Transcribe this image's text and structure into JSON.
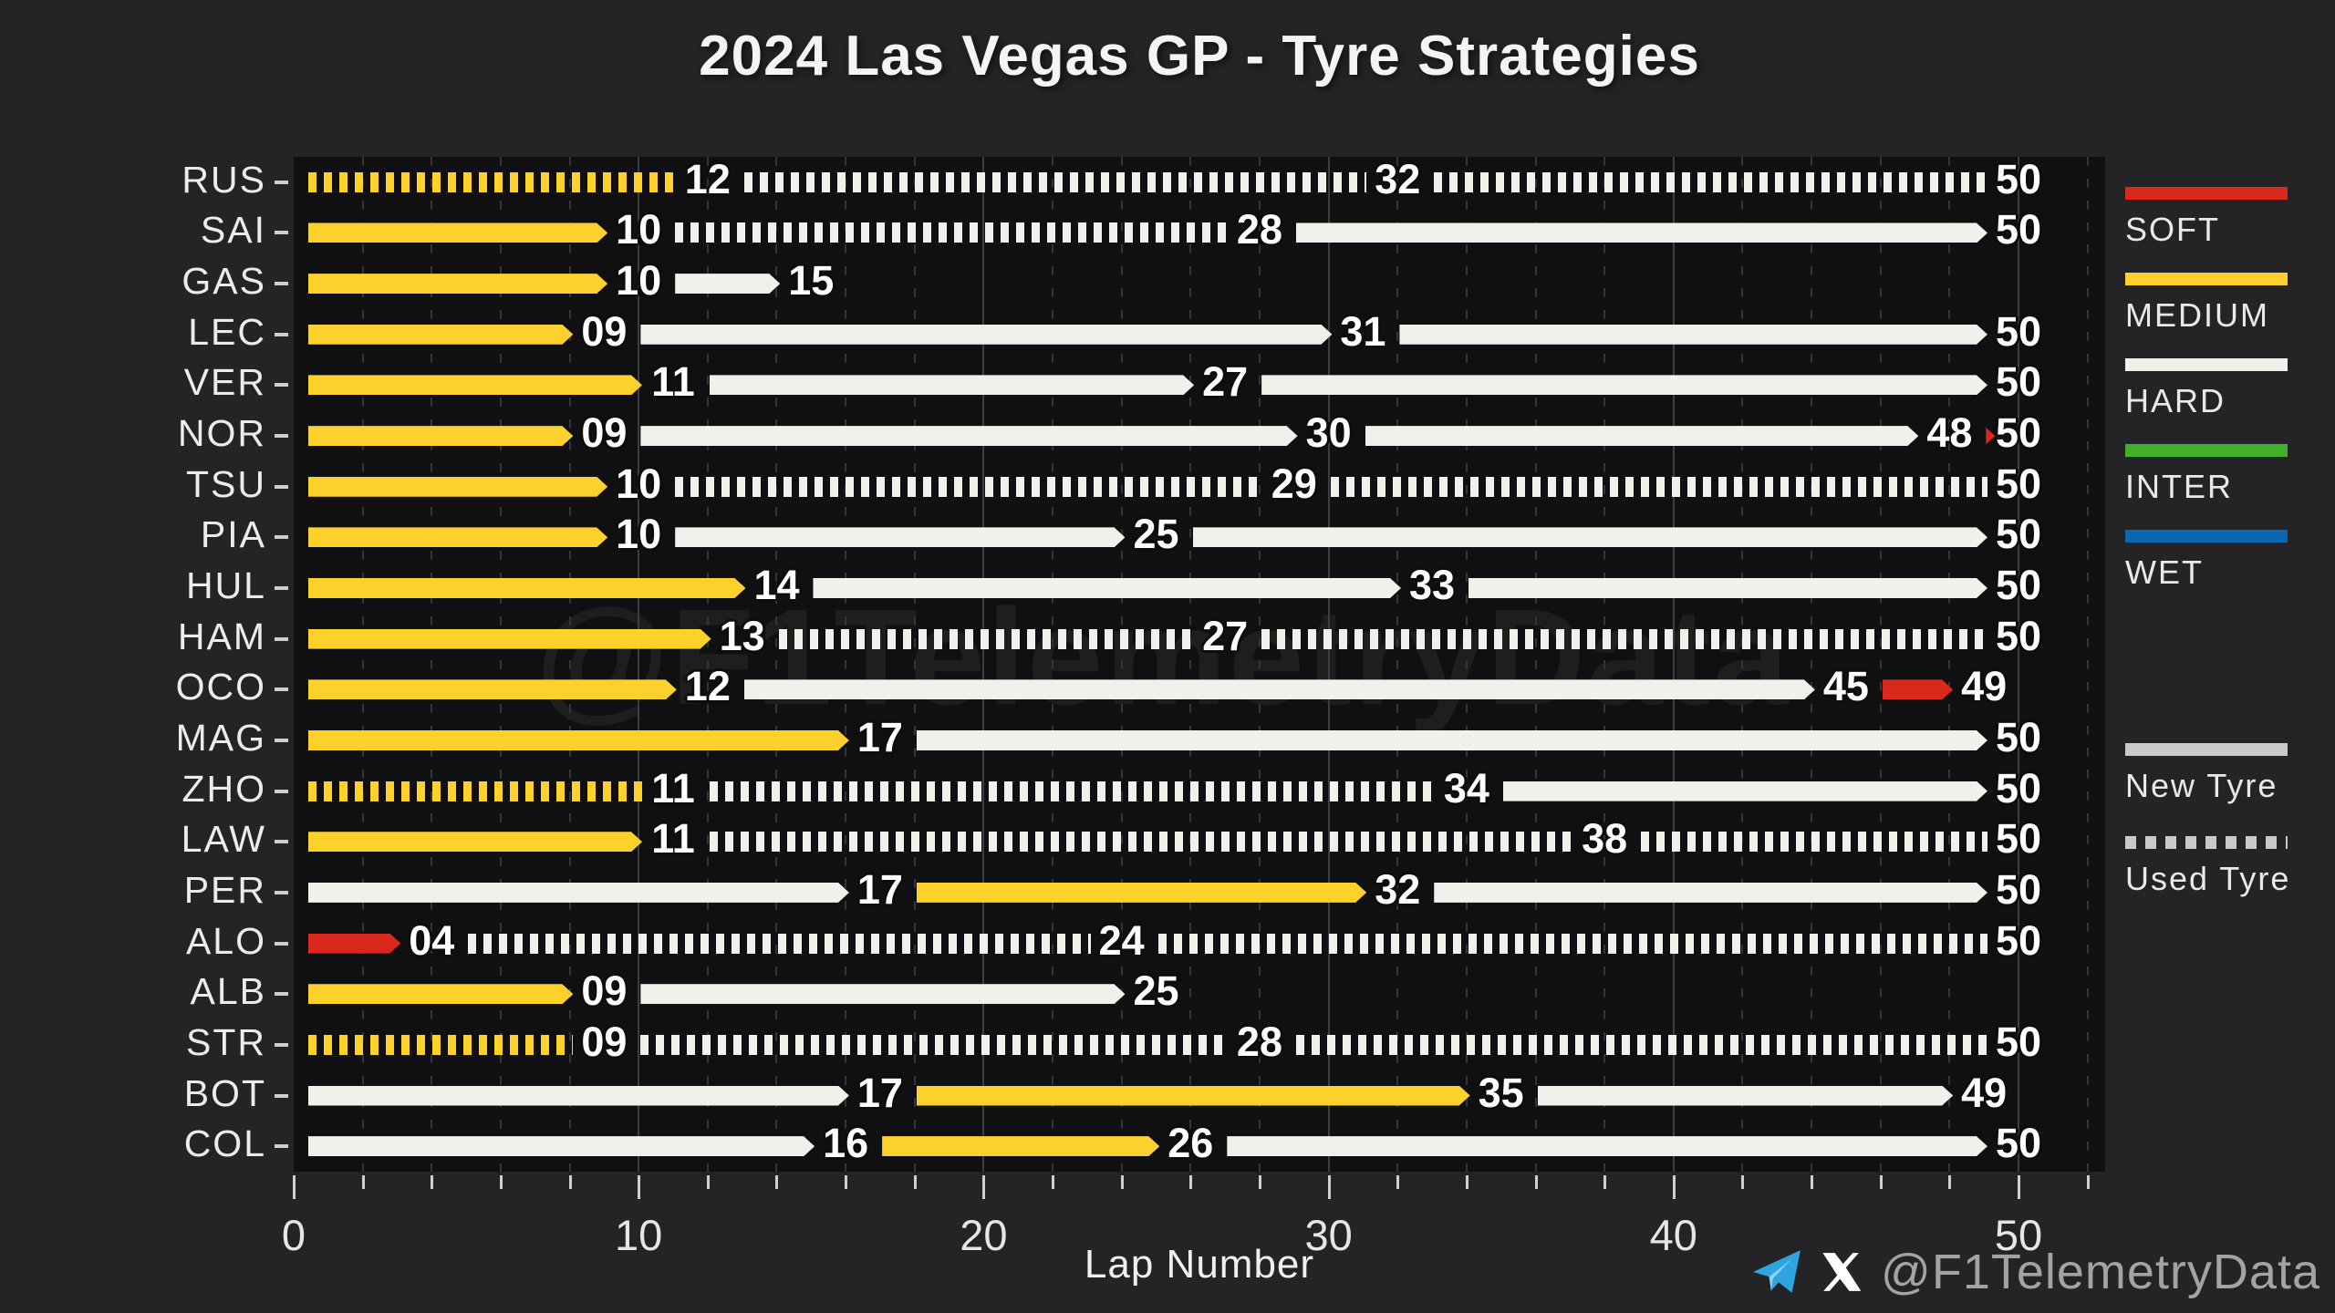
{
  "title": "2024 Las Vegas GP - Tyre Strategies",
  "watermark": "@F1TelemetryData",
  "attribution": {
    "handle": "@F1TelemetryData"
  },
  "chart_data": {
    "type": "bar",
    "orientation": "horizontal-stint-timeline",
    "title": "2024 Las Vegas GP - Tyre Strategies",
    "xlabel": "Lap Number",
    "x_ticks": [
      0,
      10,
      20,
      30,
      40,
      50
    ],
    "x_minor_step": 2,
    "xlim": [
      0,
      52.5
    ],
    "grid": "dashed-minor-vertical",
    "legend_position": "right",
    "compound_colors": {
      "SOFT": "#da291c",
      "MEDIUM": "#fcd12b",
      "HARD": "#f1f1ec",
      "INTER": "#43b02a",
      "WET": "#0a67b1"
    },
    "legend_compounds": [
      {
        "label": "SOFT",
        "color": "#da291c"
      },
      {
        "label": "MEDIUM",
        "color": "#fcd12b"
      },
      {
        "label": "HARD",
        "color": "#f1f1ec"
      },
      {
        "label": "INTER",
        "color": "#43b02a"
      },
      {
        "label": "WET",
        "color": "#0a67b1"
      }
    ],
    "legend_usage": [
      {
        "label": "New Tyre",
        "style": "solid",
        "color": "#c9c9c9"
      },
      {
        "label": "Used Tyre",
        "style": "dashed",
        "color": "#c9c9c9"
      }
    ],
    "drivers": [
      {
        "code": "RUS",
        "stints": [
          {
            "compound": "MEDIUM",
            "used": true,
            "end_lap": 12
          },
          {
            "compound": "HARD",
            "used": true,
            "end_lap": 32
          },
          {
            "compound": "HARD",
            "used": true,
            "end_lap": 50
          }
        ]
      },
      {
        "code": "SAI",
        "stints": [
          {
            "compound": "MEDIUM",
            "used": false,
            "end_lap": 10
          },
          {
            "compound": "HARD",
            "used": true,
            "end_lap": 28
          },
          {
            "compound": "HARD",
            "used": false,
            "end_lap": 50
          }
        ]
      },
      {
        "code": "GAS",
        "stints": [
          {
            "compound": "MEDIUM",
            "used": false,
            "end_lap": 10
          },
          {
            "compound": "HARD",
            "used": false,
            "end_lap": 15
          }
        ]
      },
      {
        "code": "LEC",
        "stints": [
          {
            "compound": "MEDIUM",
            "used": false,
            "end_lap": 9
          },
          {
            "compound": "HARD",
            "used": false,
            "end_lap": 31
          },
          {
            "compound": "HARD",
            "used": false,
            "end_lap": 50
          }
        ]
      },
      {
        "code": "VER",
        "stints": [
          {
            "compound": "MEDIUM",
            "used": false,
            "end_lap": 11
          },
          {
            "compound": "HARD",
            "used": false,
            "end_lap": 27
          },
          {
            "compound": "HARD",
            "used": false,
            "end_lap": 50
          }
        ]
      },
      {
        "code": "NOR",
        "stints": [
          {
            "compound": "MEDIUM",
            "used": false,
            "end_lap": 9
          },
          {
            "compound": "HARD",
            "used": false,
            "end_lap": 30
          },
          {
            "compound": "HARD",
            "used": false,
            "end_lap": 48
          },
          {
            "compound": "SOFT",
            "used": false,
            "end_lap": 50
          }
        ]
      },
      {
        "code": "TSU",
        "stints": [
          {
            "compound": "MEDIUM",
            "used": false,
            "end_lap": 10
          },
          {
            "compound": "HARD",
            "used": true,
            "end_lap": 29
          },
          {
            "compound": "HARD",
            "used": true,
            "end_lap": 50
          }
        ]
      },
      {
        "code": "PIA",
        "stints": [
          {
            "compound": "MEDIUM",
            "used": false,
            "end_lap": 10
          },
          {
            "compound": "HARD",
            "used": false,
            "end_lap": 25
          },
          {
            "compound": "HARD",
            "used": false,
            "end_lap": 50
          }
        ]
      },
      {
        "code": "HUL",
        "stints": [
          {
            "compound": "MEDIUM",
            "used": false,
            "end_lap": 14
          },
          {
            "compound": "HARD",
            "used": false,
            "end_lap": 33
          },
          {
            "compound": "HARD",
            "used": false,
            "end_lap": 50
          }
        ]
      },
      {
        "code": "HAM",
        "stints": [
          {
            "compound": "MEDIUM",
            "used": false,
            "end_lap": 13
          },
          {
            "compound": "HARD",
            "used": true,
            "end_lap": 27
          },
          {
            "compound": "HARD",
            "used": true,
            "end_lap": 50
          }
        ]
      },
      {
        "code": "OCO",
        "stints": [
          {
            "compound": "MEDIUM",
            "used": false,
            "end_lap": 12
          },
          {
            "compound": "HARD",
            "used": false,
            "end_lap": 45
          },
          {
            "compound": "SOFT",
            "used": false,
            "end_lap": 49
          }
        ]
      },
      {
        "code": "MAG",
        "stints": [
          {
            "compound": "MEDIUM",
            "used": false,
            "end_lap": 17
          },
          {
            "compound": "HARD",
            "used": false,
            "end_lap": 50
          }
        ]
      },
      {
        "code": "ZHO",
        "stints": [
          {
            "compound": "MEDIUM",
            "used": true,
            "end_lap": 11
          },
          {
            "compound": "HARD",
            "used": true,
            "end_lap": 34
          },
          {
            "compound": "HARD",
            "used": false,
            "end_lap": 50
          }
        ]
      },
      {
        "code": "LAW",
        "stints": [
          {
            "compound": "MEDIUM",
            "used": false,
            "end_lap": 11
          },
          {
            "compound": "HARD",
            "used": true,
            "end_lap": 38
          },
          {
            "compound": "HARD",
            "used": true,
            "end_lap": 50
          }
        ]
      },
      {
        "code": "PER",
        "stints": [
          {
            "compound": "HARD",
            "used": false,
            "end_lap": 17
          },
          {
            "compound": "MEDIUM",
            "used": false,
            "end_lap": 32
          },
          {
            "compound": "HARD",
            "used": false,
            "end_lap": 50
          }
        ]
      },
      {
        "code": "ALO",
        "stints": [
          {
            "compound": "SOFT",
            "used": false,
            "end_lap": 4
          },
          {
            "compound": "HARD",
            "used": true,
            "end_lap": 24
          },
          {
            "compound": "HARD",
            "used": true,
            "end_lap": 50
          }
        ]
      },
      {
        "code": "ALB",
        "stints": [
          {
            "compound": "MEDIUM",
            "used": false,
            "end_lap": 9
          },
          {
            "compound": "HARD",
            "used": false,
            "end_lap": 25
          }
        ]
      },
      {
        "code": "STR",
        "stints": [
          {
            "compound": "MEDIUM",
            "used": true,
            "end_lap": 9
          },
          {
            "compound": "HARD",
            "used": true,
            "end_lap": 28
          },
          {
            "compound": "HARD",
            "used": true,
            "end_lap": 50
          }
        ]
      },
      {
        "code": "BOT",
        "stints": [
          {
            "compound": "HARD",
            "used": false,
            "end_lap": 17
          },
          {
            "compound": "MEDIUM",
            "used": false,
            "end_lap": 35
          },
          {
            "compound": "HARD",
            "used": false,
            "end_lap": 49
          }
        ]
      },
      {
        "code": "COL",
        "stints": [
          {
            "compound": "HARD",
            "used": false,
            "end_lap": 16
          },
          {
            "compound": "MEDIUM",
            "used": false,
            "end_lap": 26
          },
          {
            "compound": "HARD",
            "used": false,
            "end_lap": 50
          }
        ]
      }
    ]
  }
}
